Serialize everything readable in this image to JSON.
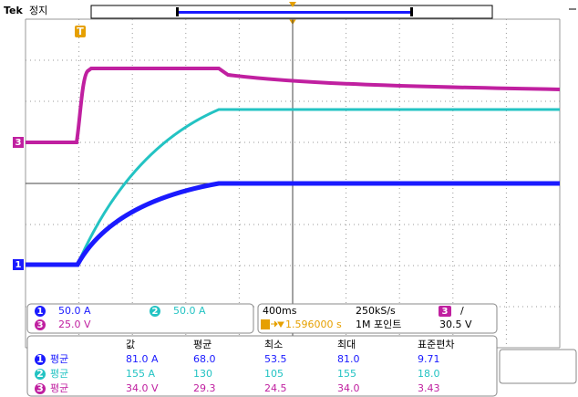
{
  "header": {
    "brand": "Tek",
    "status": "정지",
    "trigger_marker": "T"
  },
  "channels": [
    {
      "number": "1",
      "scale": "50.0 A"
    },
    {
      "number": "2",
      "scale": "50.0 A"
    },
    {
      "number": "3",
      "scale": "25.0 V"
    }
  ],
  "acquisition": {
    "timebase": "400ms",
    "sample_rate": "250kS/s",
    "trigger_source": "3",
    "trigger_slope": "/",
    "trigger_position": "1.596000 s",
    "record_length": "1M 포인트",
    "trigger_level": "30.5 V"
  },
  "measurements": {
    "columns": [
      "값",
      "평균",
      "최소",
      "최대",
      "표준편차"
    ],
    "rows": [
      {
        "channel": "1",
        "type": "평균",
        "cells": [
          "81.0 A",
          "68.0",
          "53.5",
          "81.0",
          "9.71"
        ]
      },
      {
        "channel": "2",
        "type": "평균",
        "cells": [
          "155 A",
          "130",
          "105",
          "155",
          "18.0"
        ]
      },
      {
        "channel": "3",
        "type": "평균",
        "cells": [
          "34.0 V",
          "29.3",
          "24.5",
          "34.0",
          "3.43"
        ]
      }
    ]
  }
}
